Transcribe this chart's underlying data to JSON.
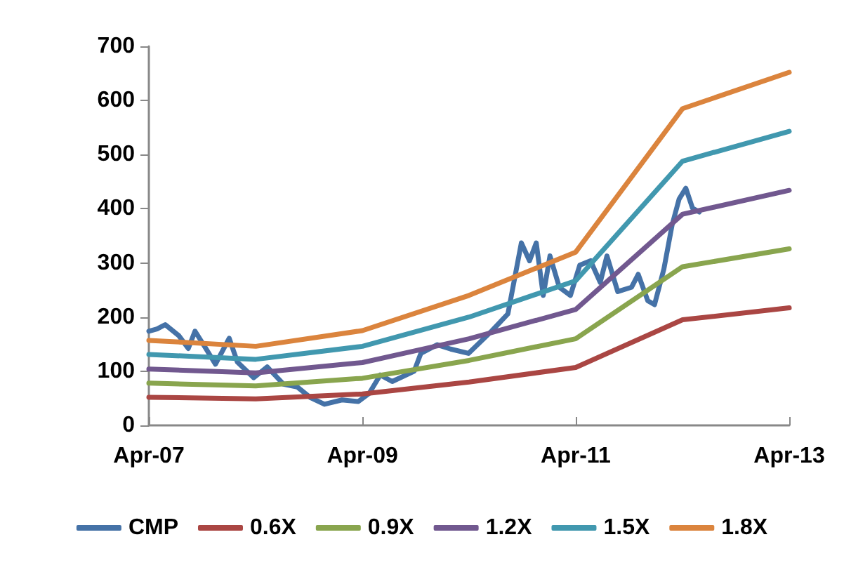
{
  "chart_data": {
    "type": "line",
    "xlim": [
      "2007-04",
      "2013-04"
    ],
    "xticks": [
      {
        "value": "2007-04",
        "label": "Apr-07"
      },
      {
        "value": "2009-04",
        "label": "Apr-09"
      },
      {
        "value": "2011-04",
        "label": "Apr-11"
      },
      {
        "value": "2013-04",
        "label": "Apr-13"
      }
    ],
    "ylim": [
      0,
      700
    ],
    "yticks": [
      0,
      100,
      200,
      300,
      400,
      500,
      600,
      700
    ],
    "grid": false,
    "legend": "bottom",
    "marker": "none",
    "line_style": "solid",
    "series": [
      {
        "name": "CMP",
        "color": "#4572a7",
        "x": [
          "2007-04-01",
          "2007-04-29",
          "2007-05-27",
          "2007-07-12",
          "2007-08-14",
          "2007-09-06",
          "2007-10-13",
          "2007-11-15",
          "2008-01-01",
          "2008-01-29",
          "2008-03-25",
          "2008-05-10",
          "2008-07-05",
          "2008-08-21",
          "2008-10-06",
          "2008-11-22",
          "2009-01-21",
          "2009-03-18",
          "2009-04-24",
          "2009-06-01",
          "2009-07-12",
          "2009-09-25",
          "2009-10-18",
          "2009-12-13",
          "2010-01-28",
          "2010-03-30",
          "2010-06-17",
          "2010-08-12",
          "2010-09-27",
          "2010-10-25",
          "2010-11-17",
          "2010-12-11",
          "2011-01-03",
          "2011-02-04",
          "2011-03-14",
          "2011-04-15",
          "2011-05-22",
          "2011-06-24",
          "2011-07-17",
          "2011-08-23",
          "2011-10-09",
          "2011-11-01",
          "2011-12-04",
          "2011-12-27",
          "2012-01-28",
          "2012-02-25",
          "2012-03-20",
          "2012-04-12",
          "2012-05-05",
          "2012-05-28"
        ],
        "values": [
          174,
          178,
          186,
          166,
          142,
          174,
          142,
          113,
          161,
          117,
          88,
          108,
          76,
          71,
          51,
          39,
          47,
          44,
          59,
          93,
          81,
          100,
          133,
          149,
          141,
          133,
          174,
          206,
          337,
          304,
          337,
          240,
          313,
          255,
          240,
          296,
          304,
          264,
          313,
          247,
          255,
          279,
          230,
          223,
          289,
          370,
          418,
          438,
          401,
          394
        ]
      },
      {
        "name": "0.6X",
        "color": "#aa4643",
        "x": [
          "2007-04",
          "2008-04",
          "2009-04",
          "2010-04",
          "2011-04",
          "2012-04",
          "2013-04"
        ],
        "values": [
          52,
          49,
          58,
          80,
          107,
          195,
          217
        ]
      },
      {
        "name": "0.9X",
        "color": "#89a54e",
        "x": [
          "2007-04",
          "2008-04",
          "2009-04",
          "2010-04",
          "2011-04",
          "2012-04",
          "2013-04"
        ],
        "values": [
          78,
          73,
          87,
          120,
          160,
          293,
          326
        ]
      },
      {
        "name": "1.2X",
        "color": "#71588f",
        "x": [
          "2007-04",
          "2008-04",
          "2009-04",
          "2010-04",
          "2011-04",
          "2012-04",
          "2013-04"
        ],
        "values": [
          104,
          97,
          116,
          160,
          214,
          390,
          434
        ]
      },
      {
        "name": "1.5X",
        "color": "#4198af",
        "x": [
          "2007-04",
          "2008-04",
          "2009-04",
          "2010-04",
          "2011-04",
          "2012-04",
          "2013-04"
        ],
        "values": [
          131,
          122,
          146,
          200,
          267,
          488,
          543
        ]
      },
      {
        "name": "1.8X",
        "color": "#db843d",
        "x": [
          "2007-04",
          "2008-04",
          "2009-04",
          "2010-04",
          "2011-04",
          "2012-04",
          "2013-04"
        ],
        "values": [
          157,
          146,
          175,
          240,
          320,
          585,
          652
        ]
      }
    ]
  }
}
